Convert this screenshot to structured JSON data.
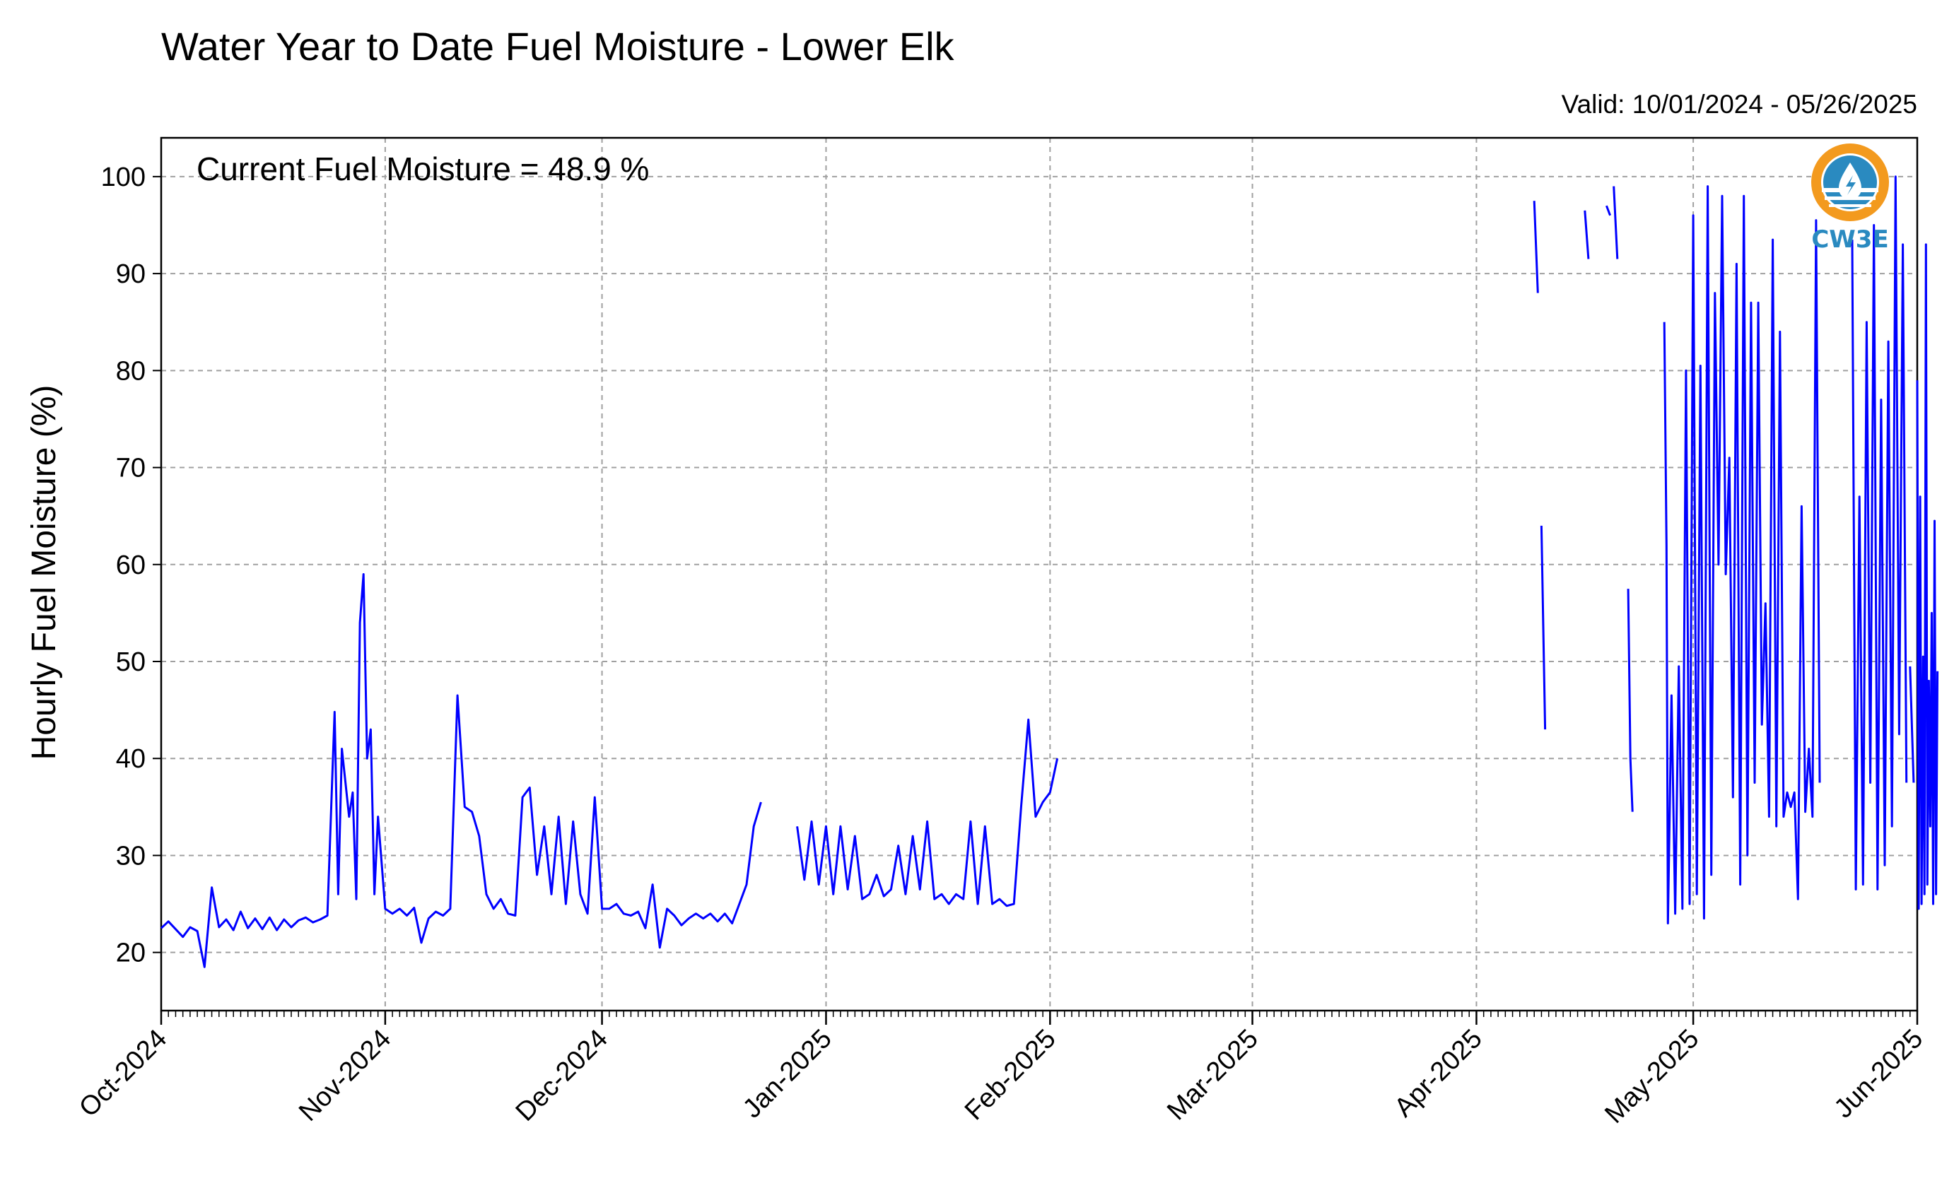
{
  "chart_data": {
    "type": "line",
    "title": "Water Year to Date Fuel Moisture - Lower Elk",
    "subtitle": "Valid: 10/01/2024 - 05/26/2025",
    "annotation": "Current Fuel Moisture = 48.9 %",
    "ylabel": "Hourly Fuel Moisture (%)",
    "xlabel": "",
    "xlim": [
      "2024-10-01",
      "2025-06-01"
    ],
    "ylim": [
      14,
      104
    ],
    "x_ticks": [
      {
        "label": "Oct-2024",
        "date": "2024-10-01"
      },
      {
        "label": "Nov-2024",
        "date": "2024-11-01"
      },
      {
        "label": "Dec-2024",
        "date": "2024-12-01"
      },
      {
        "label": "Jan-2025",
        "date": "2025-01-01"
      },
      {
        "label": "Feb-2025",
        "date": "2025-02-01"
      },
      {
        "label": "Mar-2025",
        "date": "2025-03-01"
      },
      {
        "label": "Apr-2025",
        "date": "2025-04-01"
      },
      {
        "label": "May-2025",
        "date": "2025-05-01"
      },
      {
        "label": "Jun-2025",
        "date": "2025-06-01"
      }
    ],
    "y_ticks": [
      20,
      30,
      40,
      50,
      60,
      70,
      80,
      90,
      100
    ],
    "grid": true,
    "line_color": "#0000ff",
    "grid_color": "#a0a0a0",
    "logo": {
      "text": "CW3E",
      "colors": {
        "orange": "#f39a1e",
        "blue": "#2a8ac0"
      }
    },
    "series": [
      {
        "segments": [
          [
            [
              "2024-10-01",
              22.5
            ],
            [
              "2024-10-02",
              23.2
            ],
            [
              "2024-10-03",
              22.4
            ],
            [
              "2024-10-04",
              21.6
            ],
            [
              "2024-10-05",
              22.6
            ],
            [
              "2024-10-06",
              22.2
            ],
            [
              "2024-10-07",
              18.5
            ],
            [
              "2024-10-08",
              26.7
            ],
            [
              "2024-10-09",
              22.6
            ],
            [
              "2024-10-10",
              23.4
            ],
            [
              "2024-10-11",
              22.3
            ],
            [
              "2024-10-12",
              24.2
            ],
            [
              "2024-10-13",
              22.5
            ],
            [
              "2024-10-14",
              23.5
            ],
            [
              "2024-10-15",
              22.4
            ],
            [
              "2024-10-16",
              23.6
            ],
            [
              "2024-10-17",
              22.3
            ],
            [
              "2024-10-18",
              23.4
            ],
            [
              "2024-10-19",
              22.6
            ],
            [
              "2024-10-20",
              23.3
            ],
            [
              "2024-10-21",
              23.6
            ],
            [
              "2024-10-22",
              23.1
            ],
            [
              "2024-10-23",
              23.4
            ],
            [
              "2024-10-24",
              23.8
            ],
            [
              "2024-10-25",
              44.8
            ],
            [
              "2024-10-25.5",
              26.0
            ],
            [
              "2024-10-26",
              41.0
            ],
            [
              "2024-10-27",
              34.0
            ],
            [
              "2024-10-27.5",
              36.5
            ],
            [
              "2024-10-28",
              25.5
            ],
            [
              "2024-10-28.5",
              54.0
            ],
            [
              "2024-10-29",
              59.0
            ],
            [
              "2024-10-29.5",
              40.0
            ],
            [
              "2024-10-30",
              43.0
            ],
            [
              "2024-10-30.5",
              26.0
            ],
            [
              "2024-10-31",
              34.0
            ],
            [
              "2024-11-01",
              24.5
            ],
            [
              "2024-11-02",
              24.0
            ],
            [
              "2024-11-03",
              24.5
            ],
            [
              "2024-11-04",
              23.8
            ],
            [
              "2024-11-05",
              24.6
            ],
            [
              "2024-11-06",
              21.0
            ],
            [
              "2024-11-07",
              23.5
            ],
            [
              "2024-11-08",
              24.2
            ],
            [
              "2024-11-09",
              23.8
            ],
            [
              "2024-11-10",
              24.5
            ],
            [
              "2024-11-11",
              46.5
            ],
            [
              "2024-11-12",
              35.0
            ],
            [
              "2024-11-13",
              34.5
            ],
            [
              "2024-11-14",
              32.0
            ],
            [
              "2024-11-15",
              26.0
            ],
            [
              "2024-11-16",
              24.5
            ],
            [
              "2024-11-17",
              25.5
            ],
            [
              "2024-11-18",
              24.0
            ],
            [
              "2024-11-19",
              23.8
            ],
            [
              "2024-11-20",
              36.0
            ],
            [
              "2024-11-21",
              37.0
            ],
            [
              "2024-11-22",
              28.0
            ],
            [
              "2024-11-23",
              33.0
            ],
            [
              "2024-11-24",
              26.0
            ],
            [
              "2024-11-25",
              34.0
            ],
            [
              "2024-11-26",
              25.0
            ],
            [
              "2024-11-27",
              33.5
            ],
            [
              "2024-11-28",
              26.0
            ],
            [
              "2024-11-29",
              24.0
            ],
            [
              "2024-11-30",
              36.0
            ],
            [
              "2024-12-01",
              24.5
            ],
            [
              "2024-12-02",
              24.5
            ],
            [
              "2024-12-03",
              25.0
            ],
            [
              "2024-12-04",
              24.0
            ],
            [
              "2024-12-05",
              23.8
            ],
            [
              "2024-12-06",
              24.2
            ],
            [
              "2024-12-07",
              22.5
            ],
            [
              "2024-12-08",
              27.0
            ],
            [
              "2024-12-09",
              20.5
            ],
            [
              "2024-12-10",
              24.5
            ],
            [
              "2024-12-11",
              23.8
            ],
            [
              "2024-12-12",
              22.8
            ],
            [
              "2024-12-13",
              23.5
            ],
            [
              "2024-12-14",
              24.0
            ],
            [
              "2024-12-15",
              23.5
            ],
            [
              "2024-12-16",
              24.0
            ],
            [
              "2024-12-17",
              23.2
            ],
            [
              "2024-12-18",
              24.0
            ],
            [
              "2024-12-19",
              23.0
            ],
            [
              "2024-12-20",
              25.0
            ],
            [
              "2024-12-21",
              27.0
            ],
            [
              "2024-12-22",
              33.0
            ],
            [
              "2024-12-23",
              35.5
            ]
          ],
          [
            [
              "2024-12-28",
              33.0
            ],
            [
              "2024-12-29",
              27.5
            ],
            [
              "2024-12-30",
              33.5
            ],
            [
              "2024-12-31",
              27.0
            ],
            [
              "2025-01-01",
              33.0
            ],
            [
              "2025-01-02",
              26.0
            ],
            [
              "2025-01-03",
              33.0
            ],
            [
              "2025-01-04",
              26.5
            ],
            [
              "2025-01-05",
              32.0
            ],
            [
              "2025-01-06",
              25.5
            ],
            [
              "2025-01-07",
              26.0
            ],
            [
              "2025-01-08",
              28.0
            ],
            [
              "2025-01-09",
              25.8
            ],
            [
              "2025-01-10",
              26.5
            ],
            [
              "2025-01-11",
              31.0
            ],
            [
              "2025-01-12",
              26.0
            ],
            [
              "2025-01-13",
              32.0
            ],
            [
              "2025-01-14",
              26.5
            ],
            [
              "2025-01-15",
              33.5
            ],
            [
              "2025-01-16",
              25.5
            ],
            [
              "2025-01-17",
              26.0
            ],
            [
              "2025-01-18",
              25.0
            ],
            [
              "2025-01-19",
              26.0
            ],
            [
              "2025-01-20",
              25.5
            ],
            [
              "2025-01-21",
              33.5
            ],
            [
              "2025-01-22",
              25.0
            ],
            [
              "2025-01-23",
              33.0
            ],
            [
              "2025-01-24",
              25.0
            ],
            [
              "2025-01-25",
              25.5
            ],
            [
              "2025-01-26",
              24.8
            ],
            [
              "2025-01-27",
              25.0
            ],
            [
              "2025-01-28",
              35.0
            ],
            [
              "2025-01-29",
              44.0
            ],
            [
              "2025-01-30",
              34.0
            ],
            [
              "2025-01-31",
              35.5
            ],
            [
              "2025-02-01",
              36.5
            ],
            [
              "2025-02-02",
              40.0
            ]
          ],
          [
            [
              "2025-04-09",
              97.5
            ],
            [
              "2025-04-09.5",
              88.0
            ]
          ],
          [
            [
              "2025-04-10",
              64.0
            ],
            [
              "2025-04-10.5",
              43.0
            ]
          ],
          [
            [
              "2025-04-16",
              96.5
            ],
            [
              "2025-04-16.5",
              91.5
            ]
          ],
          [
            [
              "2025-04-19",
              97.0
            ],
            [
              "2025-04-19.5",
              96.0
            ]
          ],
          [
            [
              "2025-04-20",
              99.0
            ],
            [
              "2025-04-20.5",
              91.5
            ]
          ],
          [
            [
              "2025-04-22",
              57.5
            ],
            [
              "2025-04-22.3",
              40.0
            ],
            [
              "2025-04-22.6",
              34.5
            ]
          ],
          [
            [
              "2025-04-27",
              85.0
            ],
            [
              "2025-04-27.3",
              62.0
            ],
            [
              "2025-04-27.5",
              23.0
            ],
            [
              "2025-04-28",
              46.5
            ],
            [
              "2025-04-28.5",
              24.0
            ],
            [
              "2025-04-29",
              49.5
            ],
            [
              "2025-04-29.5",
              24.5
            ],
            [
              "2025-04-30",
              80.0
            ],
            [
              "2025-04-30.5",
              25.0
            ],
            [
              "2025-05-01",
              96.0
            ],
            [
              "2025-05-01.5",
              26.0
            ],
            [
              "2025-05-02",
              80.5
            ],
            [
              "2025-05-02.5",
              23.5
            ],
            [
              "2025-05-03",
              99.0
            ],
            [
              "2025-05-03.5",
              28.0
            ],
            [
              "2025-05-04",
              88.0
            ],
            [
              "2025-05-04.5",
              60.0
            ],
            [
              "2025-05-05",
              98.0
            ],
            [
              "2025-05-05.5",
              59.0
            ],
            [
              "2025-05-06",
              71.0
            ],
            [
              "2025-05-06.5",
              36.0
            ],
            [
              "2025-05-07",
              91.0
            ],
            [
              "2025-05-07.5",
              27.0
            ],
            [
              "2025-05-08",
              98.0
            ],
            [
              "2025-05-08.5",
              30.0
            ],
            [
              "2025-05-09",
              87.0
            ],
            [
              "2025-05-09.5",
              37.5
            ],
            [
              "2025-05-10",
              87.0
            ],
            [
              "2025-05-10.5",
              43.5
            ],
            [
              "2025-05-11",
              56.0
            ],
            [
              "2025-05-11.5",
              34.0
            ],
            [
              "2025-05-12",
              93.5
            ],
            [
              "2025-05-12.5",
              33.0
            ],
            [
              "2025-05-13",
              84.0
            ],
            [
              "2025-05-13.5",
              34.0
            ],
            [
              "2025-05-14",
              36.5
            ],
            [
              "2025-05-14.5",
              35.0
            ],
            [
              "2025-05-15",
              36.5
            ],
            [
              "2025-05-15.5",
              25.5
            ],
            [
              "2025-05-16",
              66.0
            ],
            [
              "2025-05-16.5",
              34.5
            ],
            [
              "2025-05-17",
              41.0
            ],
            [
              "2025-05-17.5",
              34.0
            ],
            [
              "2025-05-18",
              95.5
            ],
            [
              "2025-05-18.5",
              37.5
            ]
          ],
          [
            [
              "2025-05-23",
              93.5
            ],
            [
              "2025-05-23.5",
              26.5
            ],
            [
              "2025-05-24",
              67.0
            ],
            [
              "2025-05-24.5",
              27.0
            ],
            [
              "2025-05-25",
              85.0
            ],
            [
              "2025-05-25.5",
              37.5
            ],
            [
              "2025-05-26",
              95.0
            ],
            [
              "2025-05-26.5",
              26.5
            ],
            [
              "2025-05-27",
              77.0
            ],
            [
              "2025-05-27.5",
              29.0
            ],
            [
              "2025-05-28",
              83.0
            ],
            [
              "2025-05-28.5",
              33.0
            ],
            [
              "2025-05-29",
              100.0
            ],
            [
              "2025-05-29.5",
              42.5
            ],
            [
              "2025-05-30",
              93.0
            ],
            [
              "2025-05-30.5",
              37.5
            ]
          ],
          [
            [
              "2025-05-31",
              49.5
            ],
            [
              "2025-05-31.5",
              37.5
            ]
          ],
          [
            [
              "2025-06-01",
              79.0
            ],
            [
              "2025-06-01.2",
              24.5
            ],
            [
              "2025-06-01.4",
              67.0
            ],
            [
              "2025-06-01.6",
              25.0
            ],
            [
              "2025-06-01.8",
              50.5
            ],
            [
              "2025-06-02",
              26.0
            ],
            [
              "2025-06-02.2",
              93.0
            ],
            [
              "2025-06-02.4",
              27.0
            ],
            [
              "2025-06-02.6",
              48.0
            ],
            [
              "2025-06-02.8",
              33.0
            ],
            [
              "2025-06-03",
              55.0
            ],
            [
              "2025-06-03.2",
              25.0
            ],
            [
              "2025-06-03.4",
              64.5
            ],
            [
              "2025-06-03.6",
              26.0
            ],
            [
              "2025-06-03.8",
              49.0
            ]
          ]
        ]
      }
    ]
  }
}
